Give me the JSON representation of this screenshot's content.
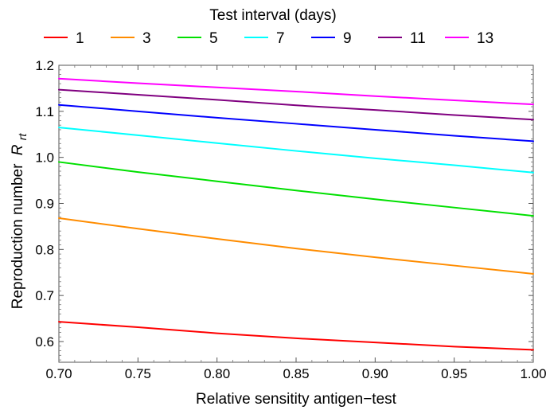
{
  "chart_data": {
    "type": "line",
    "legend": {
      "title": "Test interval (days)",
      "placement": "top"
    },
    "xlabel": "Relative sensitity antigen−test",
    "ylabel": "Reproduction number",
    "ylabel_symbol": "R",
    "ylabel_subscript": "rt",
    "xlim": [
      0.7,
      1.0
    ],
    "ylim": [
      0.555,
      1.2
    ],
    "x_ticks": [
      "0.70",
      "0.75",
      "0.80",
      "0.85",
      "0.90",
      "0.95",
      "1.00"
    ],
    "y_ticks": [
      "0.6",
      "0.7",
      "0.8",
      "0.9",
      "1.0",
      "1.1",
      "1.2"
    ],
    "grid": false,
    "x": [
      0.7,
      0.75,
      0.8,
      0.85,
      0.9,
      0.95,
      1.0
    ],
    "series": [
      {
        "name": "1",
        "color": "#ff0000",
        "values": [
          0.643,
          0.631,
          0.618,
          0.607,
          0.598,
          0.589,
          0.582
        ]
      },
      {
        "name": "3",
        "color": "#ff8c00",
        "values": [
          0.868,
          0.845,
          0.823,
          0.802,
          0.783,
          0.765,
          0.747
        ]
      },
      {
        "name": "5",
        "color": "#00e000",
        "values": [
          0.99,
          0.968,
          0.948,
          0.928,
          0.909,
          0.891,
          0.873
        ]
      },
      {
        "name": "7",
        "color": "#00ffff",
        "values": [
          1.065,
          1.048,
          1.031,
          1.014,
          0.998,
          0.983,
          0.967
        ]
      },
      {
        "name": "9",
        "color": "#0000ff",
        "values": [
          1.114,
          1.1,
          1.086,
          1.073,
          1.06,
          1.047,
          1.035
        ]
      },
      {
        "name": "11",
        "color": "#800080",
        "values": [
          1.147,
          1.136,
          1.125,
          1.113,
          1.103,
          1.092,
          1.082
        ]
      },
      {
        "name": "13",
        "color": "#ff00ff",
        "values": [
          1.171,
          1.161,
          1.152,
          1.143,
          1.133,
          1.124,
          1.115
        ]
      }
    ]
  }
}
